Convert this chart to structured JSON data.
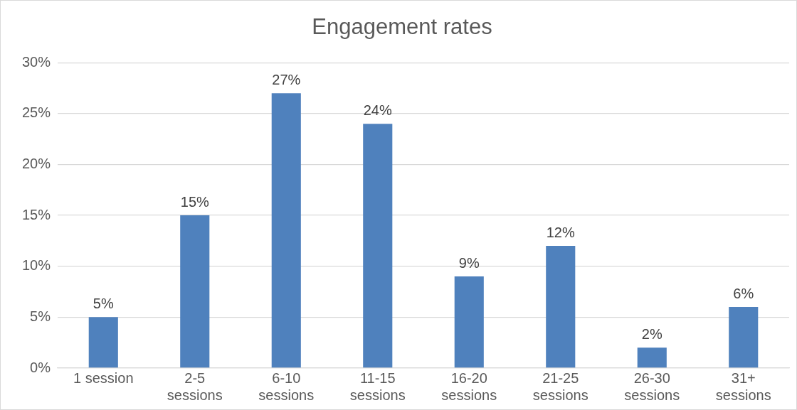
{
  "chart_data": {
    "type": "bar",
    "title": "Engagement rates",
    "categories": [
      "1 session",
      "2-5 sessions",
      "6-10 sessions",
      "11-15 sessions",
      "16-20 sessions",
      "21-25 sessions",
      "26-30 sessions",
      "31+ sessions"
    ],
    "values": [
      5,
      15,
      27,
      24,
      9,
      12,
      2,
      6
    ],
    "value_labels": [
      "5%",
      "15%",
      "27%",
      "24%",
      "9%",
      "12%",
      "2%",
      "6%"
    ],
    "color": "#4f81bd",
    "ylim": [
      0,
      30
    ],
    "yticks": [
      {
        "value": 0,
        "label": "0%"
      },
      {
        "value": 5,
        "label": "5%"
      },
      {
        "value": 10,
        "label": "10%"
      },
      {
        "value": 15,
        "label": "15%"
      },
      {
        "value": 20,
        "label": "20%"
      },
      {
        "value": 25,
        "label": "25%"
      },
      {
        "value": 30,
        "label": "30%"
      }
    ],
    "grid": "y",
    "legend": false
  }
}
